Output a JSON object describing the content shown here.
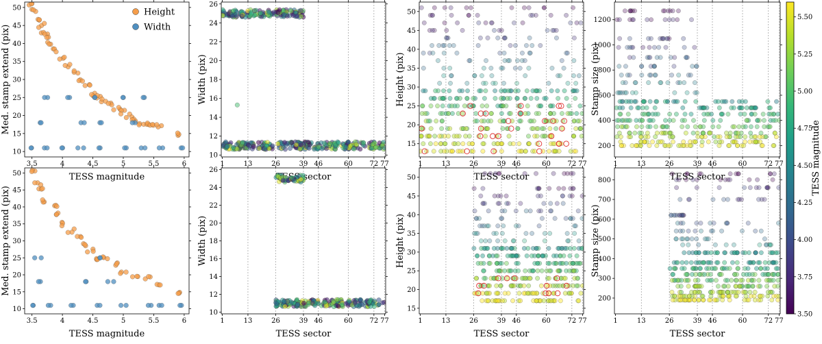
{
  "colors": {
    "height": "#f59d4a",
    "width": "#4f8fc0",
    "highlight": "#e03030",
    "viridis": [
      "#440154",
      "#482878",
      "#3e4989",
      "#31688e",
      "#26828e",
      "#1f9e89",
      "#35b779",
      "#6ece58",
      "#b5de2b",
      "#fde725"
    ]
  },
  "legend": {
    "height": "Height",
    "width": "Width"
  },
  "colorbar": {
    "label": "TESS magnitude",
    "ticks": [
      "3.50",
      "3.75",
      "4.00",
      "4.25",
      "4.50",
      "4.75",
      "5.00",
      "5.25",
      "5.50"
    ],
    "range": [
      3.5,
      5.6
    ]
  },
  "chart_data": [
    {
      "type": "scatter",
      "xlabel": "TESS magnitude",
      "ylabel": "Med. stamp extend (pix)",
      "xlim": [
        3.38,
        6.08
      ],
      "ylim": [
        8.5,
        51.5
      ],
      "xticks": [
        3.5,
        4.0,
        4.5,
        5.0,
        5.5,
        6.0
      ],
      "yticks": [
        10,
        15,
        20,
        25,
        30,
        35,
        40,
        45,
        50
      ],
      "series": [
        {
          "name": "Height",
          "points": [
            [
              3.5,
              51
            ],
            [
              3.55,
              49
            ],
            [
              3.6,
              47
            ],
            [
              3.65,
              45
            ],
            [
              3.7,
              43
            ],
            [
              3.75,
              42
            ],
            [
              3.8,
              40
            ],
            [
              3.9,
              38
            ],
            [
              4.0,
              36
            ],
            [
              4.1,
              34
            ],
            [
              4.2,
              32
            ],
            [
              4.3,
              30
            ],
            [
              4.4,
              28
            ],
            [
              4.5,
              26
            ],
            [
              4.6,
              25
            ],
            [
              4.7,
              24
            ],
            [
              4.8,
              23
            ],
            [
              4.9,
              22
            ],
            [
              5.0,
              21
            ],
            [
              5.1,
              20
            ],
            [
              5.2,
              19
            ],
            [
              5.3,
              18
            ],
            [
              5.4,
              18
            ],
            [
              5.5,
              17
            ],
            [
              5.6,
              17
            ],
            [
              5.95,
              15
            ]
          ]
        },
        {
          "name": "Width",
          "points": [
            [
              3.5,
              11
            ],
            [
              3.7,
              11
            ],
            [
              4.0,
              11
            ],
            [
              4.3,
              11
            ],
            [
              4.6,
              11
            ],
            [
              5.0,
              11
            ],
            [
              5.3,
              11
            ],
            [
              5.6,
              11
            ],
            [
              5.95,
              11
            ],
            [
              3.6,
              18
            ],
            [
              4.3,
              18
            ],
            [
              4.6,
              18
            ],
            [
              5.2,
              18
            ],
            [
              3.7,
              25
            ],
            [
              4.1,
              25
            ],
            [
              4.5,
              25
            ],
            [
              5.0,
              25
            ],
            [
              5.3,
              25
            ]
          ]
        }
      ]
    },
    {
      "type": "scatter",
      "xlabel": "TESS sector",
      "ylabel": "Width (pix)",
      "xlim": [
        0.5,
        77.5
      ],
      "ylim": [
        9.8,
        26.2
      ],
      "xticks": [
        1,
        13,
        26,
        39,
        46,
        60,
        72,
        77
      ],
      "yticks": [
        10,
        12,
        14,
        16,
        18,
        20,
        22,
        24,
        26
      ],
      "vlines": [
        13,
        26,
        39,
        46,
        60,
        72,
        77
      ],
      "bands": [
        {
          "x": [
            1,
            39
          ],
          "y": 25,
          "spread": 0.4
        },
        {
          "x": [
            1,
            77
          ],
          "y": 11,
          "spread": 0.4
        }
      ],
      "outliers": [
        [
          8,
          15.3
        ]
      ]
    },
    {
      "type": "scatter",
      "xlabel": "TESS sector",
      "ylabel": "Height (pix)",
      "xlim": [
        0.5,
        77.5
      ],
      "ylim": [
        11.5,
        52.5
      ],
      "xticks": [
        1,
        13,
        26,
        39,
        46,
        60,
        72,
        77
      ],
      "yticks": [
        15,
        20,
        25,
        30,
        35,
        40,
        45,
        50
      ],
      "vlines": [
        13,
        26,
        39,
        46,
        60,
        72,
        77
      ],
      "levels": [
        13,
        15,
        17,
        19,
        21,
        23,
        25,
        27,
        29,
        31,
        33,
        35,
        37,
        39,
        41,
        43,
        45,
        47,
        49,
        51
      ],
      "highlight_levels": [
        13,
        15,
        17,
        19,
        21,
        23,
        25
      ]
    },
    {
      "type": "scatter",
      "xlabel": "TESS sector",
      "ylabel": "Stamp size (pix)",
      "xlim": [
        0.5,
        77.5
      ],
      "ylim": [
        110,
        1340
      ],
      "xticks": [
        1,
        13,
        26,
        39,
        46,
        60,
        72,
        77
      ],
      "yticks": [
        200,
        400,
        600,
        800,
        1000,
        1200
      ],
      "vlines": [
        13,
        26,
        39,
        46,
        60,
        72,
        77
      ],
      "levels": [
        200,
        230,
        270,
        300,
        350,
        400,
        450,
        500,
        550,
        620,
        700,
        760,
        830,
        900,
        980,
        1050,
        1200,
        1270
      ]
    },
    {
      "type": "scatter",
      "xlabel": "TESS magnitude",
      "ylabel": "Med. stamp extend (pix)",
      "xlim": [
        3.38,
        6.08
      ],
      "ylim": [
        8.5,
        51.5
      ],
      "xticks": [
        3.5,
        4.0,
        4.5,
        5.0,
        5.5,
        6.0
      ],
      "yticks": [
        10,
        15,
        20,
        25,
        30,
        35,
        40,
        45,
        50
      ],
      "series": [
        {
          "name": "Height",
          "points": [
            [
              3.5,
              51
            ],
            [
              3.6,
              47
            ],
            [
              3.65,
              45
            ],
            [
              3.7,
              42
            ],
            [
              3.85,
              40
            ],
            [
              3.95,
              38
            ],
            [
              4.05,
              35
            ],
            [
              4.15,
              33
            ],
            [
              4.25,
              31
            ],
            [
              4.35,
              29
            ],
            [
              4.45,
              27
            ],
            [
              4.55,
              25
            ],
            [
              4.7,
              25
            ],
            [
              4.85,
              23
            ],
            [
              5.0,
              21
            ],
            [
              5.2,
              19
            ],
            [
              5.4,
              19
            ],
            [
              5.55,
              17
            ],
            [
              5.95,
              15
            ]
          ]
        },
        {
          "name": "Width",
          "points": [
            [
              3.5,
              11
            ],
            [
              3.8,
              11
            ],
            [
              4.2,
              11
            ],
            [
              4.6,
              11
            ],
            [
              5.0,
              11
            ],
            [
              5.4,
              11
            ],
            [
              5.6,
              11
            ],
            [
              5.95,
              11
            ],
            [
              3.65,
              18
            ],
            [
              4.4,
              18
            ],
            [
              4.8,
              18
            ],
            [
              3.6,
              25
            ],
            [
              4.6,
              25
            ]
          ]
        }
      ]
    },
    {
      "type": "scatter",
      "xlabel": "TESS sector",
      "ylabel": "Width (pix)",
      "xlim": [
        0.5,
        77.5
      ],
      "ylim": [
        9.8,
        26.2
      ],
      "xticks": [
        1,
        13,
        26,
        39,
        46,
        60,
        72,
        77
      ],
      "yticks": [
        10,
        12,
        14,
        16,
        18,
        20,
        22,
        24,
        26
      ],
      "vlines": [
        13,
        26,
        39,
        46,
        60,
        72,
        77
      ],
      "bands": [
        {
          "x": [
            26,
            39
          ],
          "y": 25,
          "spread": 0.4
        },
        {
          "x": [
            26,
            77
          ],
          "y": 11,
          "spread": 0.4
        }
      ]
    },
    {
      "type": "scatter",
      "xlabel": "TESS sector",
      "ylabel": "Height (pix)",
      "xlim": [
        0.5,
        77.5
      ],
      "ylim": [
        13.5,
        52.5
      ],
      "xticks": [
        1,
        13,
        26,
        39,
        46,
        60,
        72,
        77
      ],
      "yticks": [
        15,
        20,
        25,
        30,
        35,
        40,
        45,
        50
      ],
      "vlines": [
        13,
        26,
        39,
        46,
        60,
        72,
        77
      ],
      "levels": [
        17,
        19,
        21,
        23,
        25,
        27,
        29,
        31,
        33,
        35,
        37,
        39,
        41,
        43,
        45,
        47,
        51
      ],
      "highlight_levels": [
        19,
        21,
        23
      ]
    },
    {
      "type": "scatter",
      "xlabel": "TESS sector",
      "ylabel": "Stamp size (pix)",
      "xlim": [
        0.5,
        77.5
      ],
      "ylim": [
        120,
        860
      ],
      "xticks": [
        1,
        13,
        26,
        39,
        46,
        60,
        72,
        77
      ],
      "yticks": [
        200,
        300,
        400,
        500,
        600,
        700,
        800
      ],
      "vlines": [
        13,
        26,
        39,
        46,
        60,
        72,
        77
      ],
      "levels": [
        190,
        210,
        230,
        260,
        290,
        320,
        350,
        380,
        430,
        470,
        500,
        540,
        580,
        620,
        700,
        760,
        800,
        830
      ]
    }
  ]
}
